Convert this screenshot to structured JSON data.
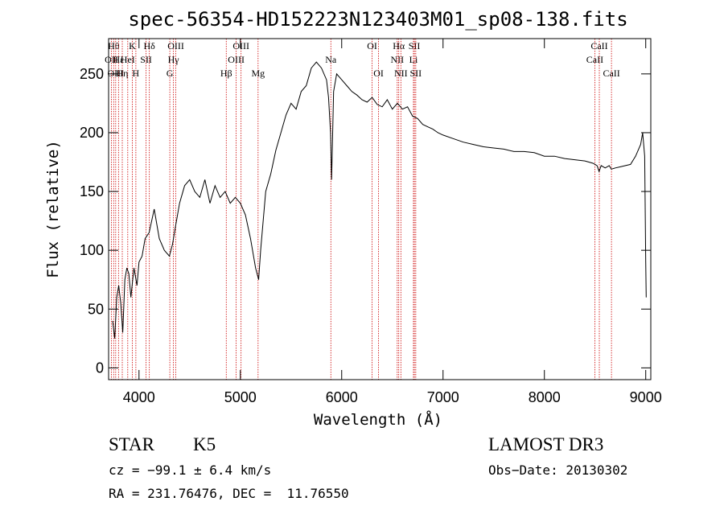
{
  "chart_data": {
    "type": "line",
    "title": "spec-56354-HD152223N123403M01_sp08-138.fits",
    "xlabel": "Wavelength (Å)",
    "ylabel": "Flux (relative)",
    "xlim": [
      3700,
      9050
    ],
    "ylim": [
      -10,
      280
    ],
    "xticks": [
      4000,
      5000,
      6000,
      7000,
      8000,
      9000
    ],
    "yticks": [
      0,
      50,
      100,
      150,
      200,
      250
    ],
    "line_color": "#000000",
    "marker_color": "#cc0000",
    "series": [
      {
        "x": [
          3740,
          3760,
          3780,
          3800,
          3820,
          3840,
          3860,
          3880,
          3900,
          3920,
          3950,
          3980,
          4000,
          4030,
          4060,
          4100,
          4150,
          4200,
          4250,
          4300,
          4330,
          4360,
          4400,
          4450,
          4500,
          4550,
          4600,
          4650,
          4700,
          4750,
          4800,
          4850,
          4900,
          4950,
          5000,
          5050,
          5100,
          5150,
          5180,
          5200,
          5250,
          5300,
          5350,
          5400,
          5450,
          5500,
          5550,
          5600,
          5650,
          5700,
          5750,
          5800,
          5850,
          5870,
          5890,
          5900,
          5920,
          5950,
          6000,
          6050,
          6100,
          6150,
          6200,
          6250,
          6300,
          6350,
          6400,
          6450,
          6500,
          6550,
          6600,
          6650,
          6700,
          6750,
          6800,
          6850,
          6900,
          6950,
          7000,
          7100,
          7200,
          7300,
          7400,
          7500,
          7600,
          7700,
          7800,
          7900,
          8000,
          8100,
          8200,
          8300,
          8400,
          8480,
          8500,
          8520,
          8540,
          8560,
          8600,
          8640,
          8660,
          8700,
          8750,
          8800,
          8850,
          8900,
          8950,
          8970,
          8990,
          9000,
          9005
        ],
        "y": [
          40,
          25,
          60,
          70,
          55,
          30,
          75,
          85,
          80,
          60,
          85,
          70,
          90,
          95,
          110,
          115,
          135,
          110,
          100,
          95,
          105,
          120,
          140,
          155,
          160,
          150,
          145,
          160,
          140,
          155,
          145,
          150,
          140,
          145,
          140,
          130,
          110,
          85,
          75,
          100,
          150,
          165,
          185,
          200,
          215,
          225,
          220,
          235,
          240,
          255,
          260,
          255,
          245,
          230,
          200,
          160,
          235,
          250,
          245,
          240,
          235,
          232,
          228,
          226,
          230,
          224,
          222,
          228,
          220,
          225,
          220,
          222,
          214,
          212,
          207,
          205,
          203,
          200,
          198,
          195,
          192,
          190,
          188,
          187,
          186,
          184,
          184,
          183,
          180,
          180,
          178,
          177,
          176,
          174,
          173,
          172,
          167,
          172,
          170,
          172,
          169,
          170,
          171,
          172,
          173,
          180,
          190,
          200,
          180,
          90,
          60
        ]
      }
    ],
    "line_markers": [
      {
        "x": 3727,
        "row": 1,
        "label": "OII"
      },
      {
        "x": 3750,
        "row": 0,
        "label": "Hθ"
      },
      {
        "x": 3770,
        "row": 2,
        "label": "OIII"
      },
      {
        "x": 3798,
        "row": 1,
        "label": "Hε"
      },
      {
        "x": 3835,
        "row": 2,
        "label": "Hη"
      },
      {
        "x": 3889,
        "row": 1,
        "label": "HeI"
      },
      {
        "x": 3934,
        "row": 0,
        "label": "K"
      },
      {
        "x": 3969,
        "row": 2,
        "label": "H"
      },
      {
        "x": 4070,
        "row": 1,
        "label": "SII"
      },
      {
        "x": 4102,
        "row": 0,
        "label": "Hδ"
      },
      {
        "x": 4304,
        "row": 2,
        "label": "G"
      },
      {
        "x": 4340,
        "row": 1,
        "label": "Hγ"
      },
      {
        "x": 4363,
        "row": 0,
        "label": "OIII"
      },
      {
        "x": 4861,
        "row": 2,
        "label": "Hβ"
      },
      {
        "x": 4959,
        "row": 1,
        "label": "OIII"
      },
      {
        "x": 5007,
        "row": 0,
        "label": "OIII"
      },
      {
        "x": 5175,
        "row": 2,
        "label": "Mg"
      },
      {
        "x": 5893,
        "row": 1,
        "label": "Na"
      },
      {
        "x": 6300,
        "row": 0,
        "label": "OI"
      },
      {
        "x": 6364,
        "row": 2,
        "label": "OI"
      },
      {
        "x": 6548,
        "row": 1,
        "label": "NII"
      },
      {
        "x": 6563,
        "row": 0,
        "label": "Hα"
      },
      {
        "x": 6584,
        "row": 2,
        "label": "NII"
      },
      {
        "x": 6708,
        "row": 1,
        "label": "Li"
      },
      {
        "x": 6717,
        "row": 0,
        "label": "SII"
      },
      {
        "x": 6731,
        "row": 2,
        "label": "SII"
      },
      {
        "x": 8498,
        "row": 1,
        "label": "CaII"
      },
      {
        "x": 8542,
        "row": 0,
        "label": "CaII"
      },
      {
        "x": 8662,
        "row": 2,
        "label": "CaII"
      }
    ]
  },
  "info": {
    "object_type": "STAR",
    "subclass": "K5",
    "survey": "LAMOST DR3",
    "cz": "cz = −99.1 ± 6.4 km/s",
    "obs_date": "Obs−Date: 20130302",
    "coords": "RA = 231.76476, DEC =  11.76550"
  }
}
